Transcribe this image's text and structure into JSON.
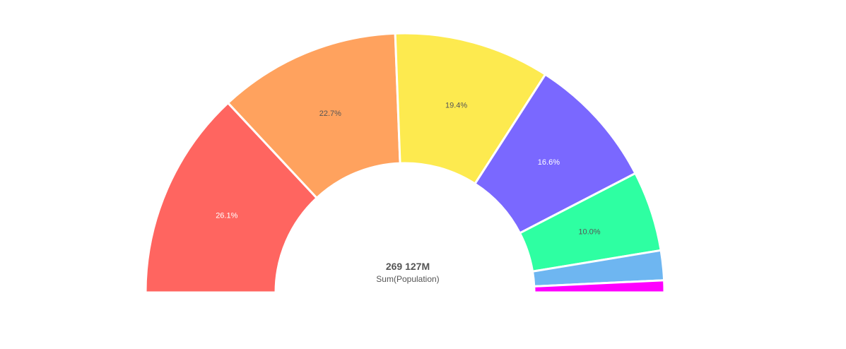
{
  "chart_data": {
    "type": "pie",
    "subtype": "half-donut",
    "center_total": "269 127M",
    "center_label": "Sum(Population)",
    "slices": [
      {
        "label": "26.1%",
        "value": 26.1,
        "color": "#ff6560",
        "label_color": "#ffffff"
      },
      {
        "label": "22.7%",
        "value": 22.7,
        "color": "#ffa25e",
        "label_color": "#555555"
      },
      {
        "label": "19.4%",
        "value": 19.4,
        "color": "#fdea4f",
        "label_color": "#555555"
      },
      {
        "label": "16.6%",
        "value": 16.6,
        "color": "#7a68ff",
        "label_color": "#ffffff"
      },
      {
        "label": "10.0%",
        "value": 10.0,
        "color": "#2effa2",
        "label_color": "#555555"
      },
      {
        "label": "",
        "value": 3.7,
        "color": "#6eb6f1",
        "label_color": "#555555"
      },
      {
        "label": "",
        "value": 1.5,
        "color": "#ff00ff",
        "label_color": "#555555"
      }
    ]
  }
}
